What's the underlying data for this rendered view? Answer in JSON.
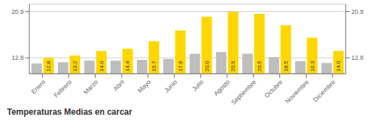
{
  "chart_data": {
    "type": "bar",
    "title": "Temperaturas Medias en carcar",
    "categories": [
      "Enero",
      "Febrero",
      "Marzo",
      "Abril",
      "Mayo",
      "Junio",
      "Julio",
      "Agosto",
      "Septiembre",
      "Octubre",
      "Noviembre",
      "Diciembre"
    ],
    "series": [
      {
        "color": "#BEBEBE",
        "values": [
          11.8,
          12.0,
          12.3,
          12.3,
          12.4,
          12.6,
          13.5,
          13.8,
          13.5,
          12.9,
          12.2,
          11.9
        ]
      },
      {
        "color": "#FFD700",
        "values": [
          12.8,
          13.2,
          14.0,
          14.4,
          15.7,
          17.6,
          20.0,
          20.9,
          20.5,
          18.5,
          16.3,
          14.0
        ],
        "data_labels": true,
        "value_labels": [
          "12.8",
          "13.2",
          "14.0",
          "14.4",
          "15.7",
          "17.6",
          "20.0",
          "20.9",
          "20.5",
          "18.5",
          "16.3",
          "14.0"
        ]
      }
    ],
    "ylim": [
      10.0,
      22.2
    ],
    "yticks": [
      12.8,
      20.9
    ],
    "y2lim": [
      10.0,
      22.2
    ],
    "y2ticks": [
      12.8,
      20.9
    ],
    "grid": true
  }
}
